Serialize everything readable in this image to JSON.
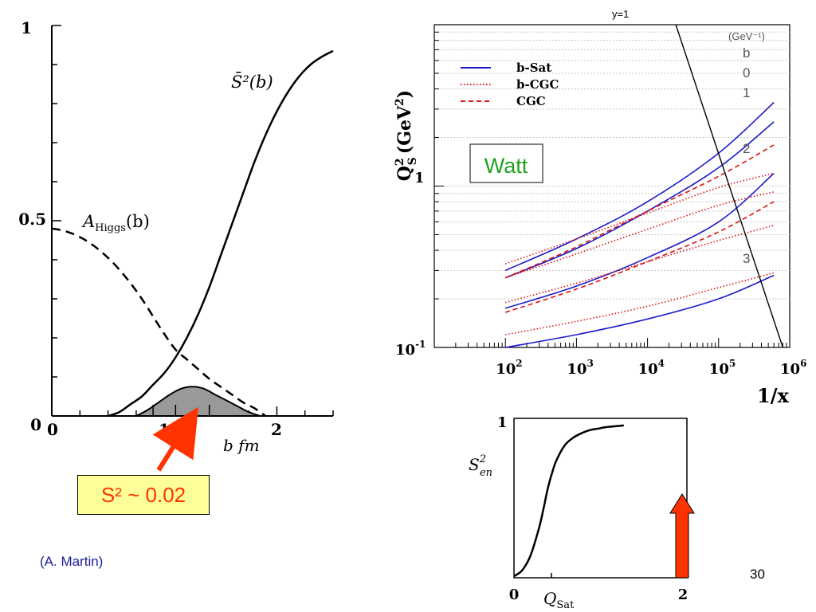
{
  "left_panel": {
    "curve_S2_label": "S̄²(b)",
    "curve_A_label": "A",
    "curve_A_sub": "Higgs",
    "curve_A_arg": "(b)",
    "x_axis_label": "b fm",
    "y_ticks": [
      "1",
      "0.5",
      "0"
    ],
    "x_ticks": [
      "0",
      "1",
      "2"
    ],
    "callout_text": "S² ~ 0.02",
    "credit": "(A. Martin)"
  },
  "right_panel": {
    "y_axis_label": "Q",
    "y_axis_sub": "S",
    "y_axis_sup": "2",
    "y_axis_unit": "(GeV",
    "y_axis_unit_sup": "2",
    "y_axis_unit_close": ")",
    "x_axis_label": "1/x",
    "y_ticks": [
      "1",
      "10"
    ],
    "y_tick_exp": "-1",
    "x_ticks": [
      "10",
      "10",
      "10",
      "10",
      "10"
    ],
    "x_tick_exps": [
      "2",
      "3",
      "4",
      "5",
      "6"
    ],
    "legend": [
      "b-Sat",
      "b-CGC",
      "CGC"
    ],
    "watt_label": "Watt",
    "y_eq_label": "y=1",
    "b_unit_top": "(GeV⁻¹)",
    "b_header": "b",
    "b_values": [
      "0",
      "1",
      "2",
      "3"
    ]
  },
  "bottom_panel": {
    "y_label": "S",
    "y_label_sub": "en",
    "y_label_sup": "2",
    "x_label": "Q",
    "x_label_sub": "Sat",
    "y_tick": "1",
    "x_ticks": [
      "0",
      "2"
    ]
  },
  "page_number": "30",
  "colors": {
    "bsat": "#1a1acc",
    "cgc": "#dd1111",
    "watt_green": "#22a022",
    "callout_bg": "#ffff99",
    "callout_text": "#ff3300",
    "arrow": "#ff3300",
    "credit": "#1a1a99",
    "shade": "#999999"
  },
  "chart_data": [
    {
      "type": "line",
      "title": "",
      "xlabel": "b fm",
      "ylabel": "",
      "xlim": [
        0,
        2.5
      ],
      "ylim": [
        0,
        1
      ],
      "series": [
        {
          "name": "S̄²(b)",
          "style": "solid",
          "x": [
            0.5,
            0.6,
            0.7,
            0.8,
            0.9,
            1.0,
            1.1,
            1.2,
            1.3,
            1.4,
            1.5,
            1.6,
            1.7,
            1.8,
            1.9,
            2.0,
            2.1,
            2.2,
            2.3,
            2.4,
            2.5
          ],
          "y": [
            0.0,
            0.01,
            0.03,
            0.05,
            0.08,
            0.11,
            0.15,
            0.2,
            0.26,
            0.33,
            0.41,
            0.49,
            0.57,
            0.65,
            0.72,
            0.78,
            0.83,
            0.87,
            0.9,
            0.92,
            0.935
          ]
        },
        {
          "name": "A_Higgs(b)",
          "style": "dashed",
          "x": [
            0.0,
            0.1,
            0.2,
            0.3,
            0.4,
            0.5,
            0.6,
            0.7,
            0.8,
            0.9,
            1.0,
            1.1,
            1.2,
            1.3,
            1.4,
            1.5,
            1.6,
            1.7,
            1.8,
            1.9
          ],
          "y": [
            0.48,
            0.475,
            0.465,
            0.45,
            0.43,
            0.405,
            0.375,
            0.34,
            0.3,
            0.255,
            0.21,
            0.17,
            0.145,
            0.12,
            0.095,
            0.075,
            0.055,
            0.035,
            0.02,
            0.0
          ]
        },
        {
          "name": "",
          "style": "shaded",
          "x": [
            0.75,
            0.85,
            0.95,
            1.05,
            1.15,
            1.25,
            1.35,
            1.45,
            1.55,
            1.65,
            1.75,
            1.85
          ],
          "y": [
            0.0,
            0.015,
            0.035,
            0.055,
            0.07,
            0.075,
            0.07,
            0.055,
            0.04,
            0.025,
            0.01,
            0.0
          ]
        }
      ]
    },
    {
      "type": "line",
      "title": "",
      "xlabel": "1/x",
      "ylabel": "Q_S^2 (GeV^2)",
      "xscale": "log",
      "yscale": "log",
      "xlim": [
        10,
        1000000
      ],
      "ylim": [
        0.1,
        10
      ],
      "series": [
        {
          "name": "b-Sat",
          "curve": "b0",
          "style": "solid",
          "x": [
            100,
            1000,
            10000,
            100000,
            600000
          ],
          "y": [
            0.3,
            0.47,
            0.8,
            1.6,
            3.3
          ]
        },
        {
          "name": "b-Sat",
          "curve": "b1",
          "style": "solid",
          "x": [
            100,
            1000,
            10000,
            100000,
            600000
          ],
          "y": [
            0.27,
            0.41,
            0.7,
            1.3,
            2.5
          ]
        },
        {
          "name": "b-Sat",
          "curve": "b2",
          "style": "solid",
          "x": [
            100,
            1000,
            10000,
            100000,
            600000
          ],
          "y": [
            0.175,
            0.24,
            0.36,
            0.6,
            1.2
          ]
        },
        {
          "name": "b-Sat",
          "curve": "b3",
          "style": "solid",
          "x": [
            100,
            1000,
            10000,
            100000,
            600000
          ],
          "y": [
            0.1,
            0.12,
            0.15,
            0.2,
            0.28
          ]
        },
        {
          "name": "b-CGC",
          "curve": "b0",
          "style": "dotted",
          "x": [
            100,
            1000,
            10000,
            100000,
            600000
          ],
          "y": [
            0.33,
            0.47,
            0.68,
            0.98,
            1.2
          ]
        },
        {
          "name": "b-CGC",
          "curve": "b1",
          "style": "dotted",
          "x": [
            100,
            1000,
            10000,
            100000,
            600000
          ],
          "y": [
            0.27,
            0.38,
            0.54,
            0.76,
            0.92
          ]
        },
        {
          "name": "b-CGC",
          "curve": "b2",
          "style": "dotted",
          "x": [
            100,
            1000,
            10000,
            100000,
            600000
          ],
          "y": [
            0.19,
            0.25,
            0.34,
            0.46,
            0.57
          ]
        },
        {
          "name": "b-CGC",
          "curve": "b3",
          "style": "dotted",
          "x": [
            100,
            1000,
            10000,
            100000,
            600000
          ],
          "y": [
            0.12,
            0.145,
            0.18,
            0.235,
            0.29
          ]
        },
        {
          "name": "CGC",
          "curve": "upper",
          "style": "dashed",
          "x": [
            100,
            1000,
            10000,
            100000,
            600000
          ],
          "y": [
            0.27,
            0.42,
            0.7,
            1.15,
            1.8
          ]
        },
        {
          "name": "CGC",
          "curve": "lower",
          "style": "dashed",
          "x": [
            100,
            1000,
            10000,
            100000,
            600000
          ],
          "y": [
            0.165,
            0.23,
            0.34,
            0.52,
            0.8
          ]
        },
        {
          "name": "y=1",
          "style": "solid",
          "x": [
            25000,
            800000
          ],
          "y": [
            10,
            0.1
          ]
        }
      ]
    },
    {
      "type": "line",
      "title": "",
      "xlabel": "Q_Sat",
      "ylabel": "S_en^2",
      "xlim": [
        0,
        2
      ],
      "ylim": [
        0,
        1
      ],
      "series": [
        {
          "name": "",
          "style": "solid",
          "x": [
            0.0,
            0.1,
            0.2,
            0.3,
            0.35,
            0.4,
            0.45,
            0.5,
            0.6,
            0.7,
            0.8,
            0.9,
            1.0,
            1.1,
            1.2,
            1.3
          ],
          "y": [
            0.01,
            0.05,
            0.15,
            0.33,
            0.45,
            0.58,
            0.68,
            0.76,
            0.86,
            0.91,
            0.94,
            0.96,
            0.97,
            0.98,
            0.985,
            0.99
          ]
        }
      ]
    }
  ]
}
